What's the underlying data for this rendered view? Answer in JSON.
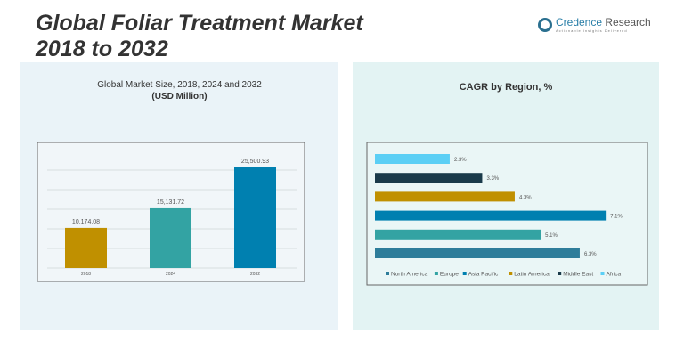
{
  "header": {
    "title_line1": "Global Foliar Treatment Market",
    "title_line2": "2018 to 2032",
    "brand": "Credence",
    "brand2": " Research",
    "tagline": "Actionable Insights Delivered"
  },
  "chart_data": [
    {
      "type": "bar",
      "title": "Global Market Size, 2018, 2024 and 2032",
      "subtitle": "(USD Million)",
      "categories": [
        "2018",
        "2024",
        "2032"
      ],
      "values": [
        10174.08,
        15131.72,
        25500.93
      ],
      "labels": [
        "10,174.08",
        "15,131.72",
        "25,500.93"
      ],
      "colors": [
        "#c09000",
        "#33a3a3",
        "#0080b0"
      ],
      "grid": true
    },
    {
      "type": "bar",
      "orientation": "horizontal",
      "title": "CAGR by Region, %",
      "categories": [
        "Africa",
        "Middle East",
        "Latin America",
        "Asia Pacific",
        "Europe",
        "North America"
      ],
      "values": [
        2.3,
        3.3,
        4.3,
        7.1,
        5.1,
        6.3
      ],
      "labels": [
        "2.3%",
        "3.3%",
        "4.3%",
        "7.1%",
        "5.1%",
        "6.3%"
      ],
      "colors": [
        "#5bcff5",
        "#1a3a4a",
        "#c09000",
        "#0080b0",
        "#33a3a3",
        "#2e7d9a"
      ],
      "legend": {
        "placement": "bottom",
        "entries": [
          {
            "name": "North America",
            "color": "#2e7d9a"
          },
          {
            "name": "Europe",
            "color": "#33a3a3"
          },
          {
            "name": "Asia Pacific",
            "color": "#0080b0"
          },
          {
            "name": "Latin America",
            "color": "#c09000"
          },
          {
            "name": "Middle East",
            "color": "#1a3a4a"
          },
          {
            "name": "Africa",
            "color": "#5bcff5"
          }
        ]
      }
    }
  ]
}
